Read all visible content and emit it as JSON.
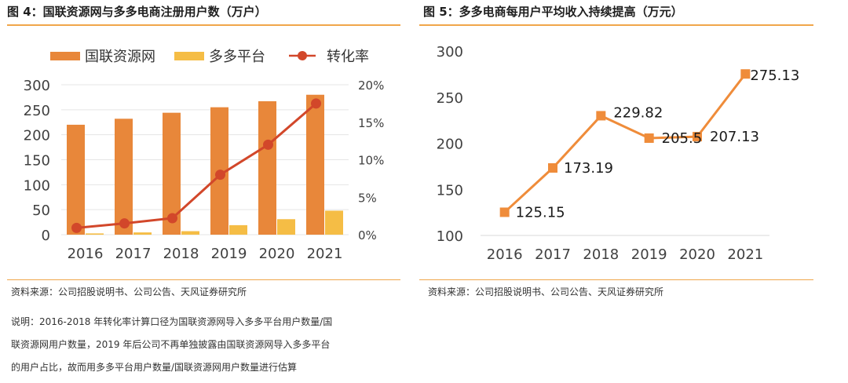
{
  "panels": [
    {
      "title": "图 4：国联资源网与多多电商注册用户数（万户）",
      "source": "资料来源：公司招股说明书、公司公告、天风证券研究所",
      "notes": [
        "说明：2016-2018 年转化率计算口径为国联资源网导入多多平台用户数量/国",
        "联资源网用户数量，2019 年后公司不再单独披露由国联资源网导入多多平台",
        "的用户占比，故而用多多平台用户数量/国联资源网用户数量进行估算"
      ]
    },
    {
      "title": "图 5：多多电商每用户平均收入持续提高（万元）",
      "source": "资料来源：公司招股说明书、公司公告、天风证券研究所"
    }
  ],
  "colors": {
    "bar_primary": "#e8873a",
    "bar_secondary": "#f5bd45",
    "line_rate": "#d2472a",
    "line_arpu": "#ef8c3a",
    "rule": "#f0a64a",
    "grid": "#e5e5e5"
  },
  "chart_data": [
    {
      "type": "bar",
      "categories": [
        "2016",
        "2017",
        "2018",
        "2019",
        "2020",
        "2021"
      ],
      "y_ticks": [
        "300",
        "250",
        "200",
        "150",
        "100",
        "50",
        "0"
      ],
      "y2_ticks": [
        "20%",
        "15%",
        "10%",
        "5%",
        "0%"
      ],
      "ylim": [
        0,
        300
      ],
      "y2lim": [
        0,
        20
      ],
      "legend_position": "top",
      "grid": true,
      "series": [
        {
          "name": "国联资源网",
          "kind": "bar",
          "axis": "left",
          "values": [
            220,
            232,
            244,
            255,
            267,
            280
          ]
        },
        {
          "name": "多多平台",
          "kind": "bar",
          "axis": "left",
          "values": [
            2.5,
            4.5,
            7,
            19,
            31,
            48
          ]
        },
        {
          "name": "转化率",
          "kind": "line",
          "axis": "right",
          "values": [
            0.9,
            1.5,
            2.2,
            8.0,
            12.0,
            17.5
          ]
        }
      ]
    },
    {
      "type": "line",
      "categories": [
        "2016",
        "2017",
        "2018",
        "2019",
        "2020",
        "2021"
      ],
      "y_ticks": [
        "300",
        "250",
        "200",
        "150",
        "100"
      ],
      "ylim": [
        100,
        300
      ],
      "grid": false,
      "series": [
        {
          "values": [
            125.15,
            173.19,
            229.82,
            205.5,
            207.13,
            275.13
          ],
          "labels": [
            "125.15",
            "173.19",
            "229.82",
            "205.5",
            "207.13",
            "275.13"
          ]
        }
      ]
    }
  ]
}
